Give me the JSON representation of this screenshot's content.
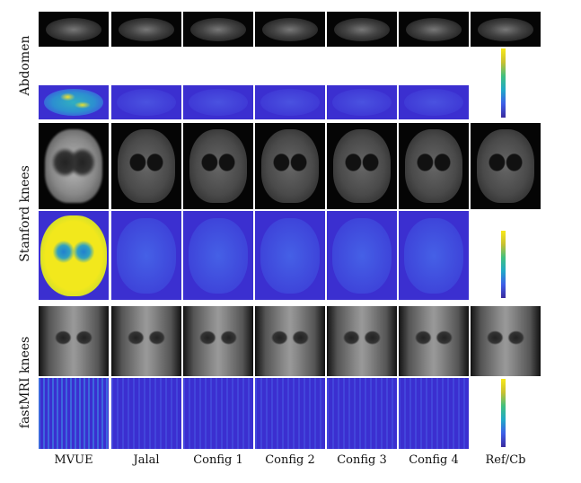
{
  "columns": [
    "MVUE",
    "Jalal",
    "Config 1",
    "Config 2",
    "Config 3",
    "Config 4",
    "Ref/Cb"
  ],
  "rows": [
    "Abdomen",
    "Stanford knees",
    "fastMRI knees"
  ],
  "colorbar": {
    "colors": [
      "#3a2a9e",
      "#3d5ee8",
      "#20a8c8",
      "#40c080",
      "#c8c030",
      "#f8e818"
    ]
  }
}
